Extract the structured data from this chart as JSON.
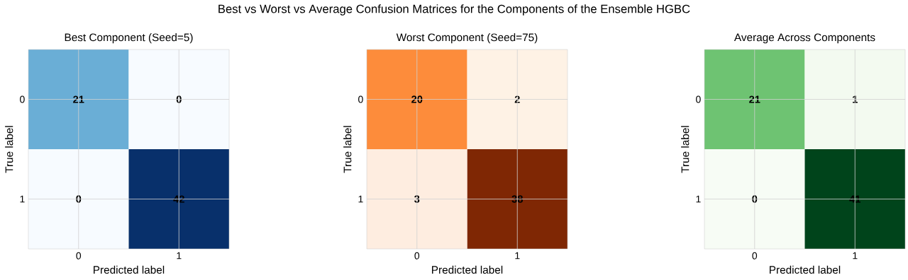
{
  "chart_data": [
    {
      "type": "other",
      "title": "Best vs Worst vs Average Confusion Matrices for the Components of the Ensemble HGBC"
    },
    {
      "type": "heatmap",
      "title": "Best Component (Seed=5)",
      "xlabel": "Predicted label",
      "ylabel": "True label",
      "categories": [
        "0",
        "1"
      ],
      "y_categories": [
        "0",
        "1"
      ],
      "cells": [
        [
          21,
          0
        ],
        [
          0,
          42
        ]
      ],
      "colors": [
        "#6aaed6",
        "#f7fbff",
        "#f7fbff",
        "#08306b"
      ],
      "data_labels": true,
      "grid": true
    },
    {
      "type": "heatmap",
      "title": "Worst Component (Seed=75)",
      "xlabel": "Predicted label",
      "ylabel": "True label",
      "categories": [
        "0",
        "1"
      ],
      "y_categories": [
        "0",
        "1"
      ],
      "cells": [
        [
          20,
          2
        ],
        [
          3,
          38
        ]
      ],
      "colors": [
        "#fd8c3b",
        "#fef2e5",
        "#feede0",
        "#7f2704"
      ],
      "data_labels": true,
      "grid": true
    },
    {
      "type": "heatmap",
      "title": "Average Across Components",
      "xlabel": "Predicted label",
      "ylabel": "True label",
      "categories": [
        "0",
        "1"
      ],
      "y_categories": [
        "0",
        "1"
      ],
      "cells": [
        [
          21,
          1
        ],
        [
          0,
          41
        ]
      ],
      "colors": [
        "#6ec372",
        "#f3faf0",
        "#f7fcf5",
        "#00441b"
      ],
      "data_labels": true,
      "grid": true
    }
  ]
}
